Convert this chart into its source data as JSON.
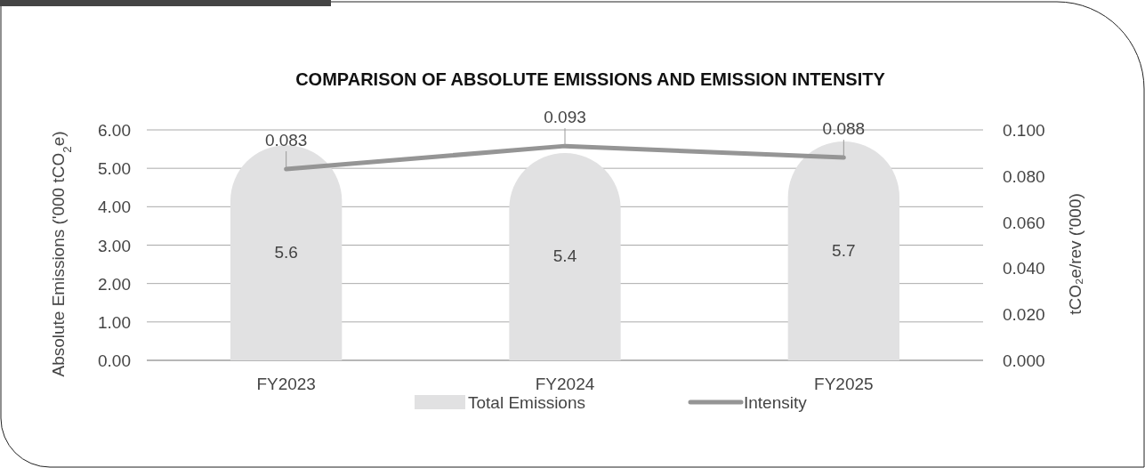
{
  "chart_data": {
    "type": "bar",
    "title": "COMPARISON OF ABSOLUTE EMISSIONS AND EMISSION INTENSITY",
    "ylabel": "Absolute Emissions ('000 tCO$_{2}$e)",
    "y2label": "tCO₂e/rev ('000)",
    "categories": [
      "FY2023",
      "FY2024",
      "FY2025"
    ],
    "series": [
      {
        "name": "Total Emissions",
        "color": "#e1e1e2",
        "values": [
          5.6,
          5.4,
          5.7
        ]
      },
      {
        "name": "Intensity",
        "type": "line",
        "axis": "y2",
        "color": "#959595",
        "values": [
          0.083,
          0.093,
          0.088
        ],
        "value_labels": [
          "0.083",
          "0.093",
          "0.088"
        ]
      }
    ],
    "value_labels": [
      "5.6",
      "5.4",
      "5.7"
    ],
    "ylim": [
      0,
      6
    ],
    "yticks": [
      {
        "value": 0,
        "label": "0.00"
      },
      {
        "value": 1,
        "label": "1.00"
      },
      {
        "value": 2,
        "label": "2.00"
      },
      {
        "value": 3,
        "label": "3.00"
      },
      {
        "value": 4,
        "label": "4.00"
      },
      {
        "value": 5,
        "label": "5.00"
      },
      {
        "value": 6,
        "label": "6.00"
      }
    ],
    "y2lim": [
      0,
      0.1
    ],
    "y2ticks": [
      {
        "value": 0,
        "label": "0.000"
      },
      {
        "value": 0.02,
        "label": "0.020"
      },
      {
        "value": 0.04,
        "label": "0.040"
      },
      {
        "value": 0.06,
        "label": "0.060"
      },
      {
        "value": 0.08,
        "label": "0.080"
      },
      {
        "value": 0.1,
        "label": "0.100"
      }
    ],
    "grid": "y",
    "legend": "bottom",
    "marker": "none",
    "line_style": "solid"
  }
}
